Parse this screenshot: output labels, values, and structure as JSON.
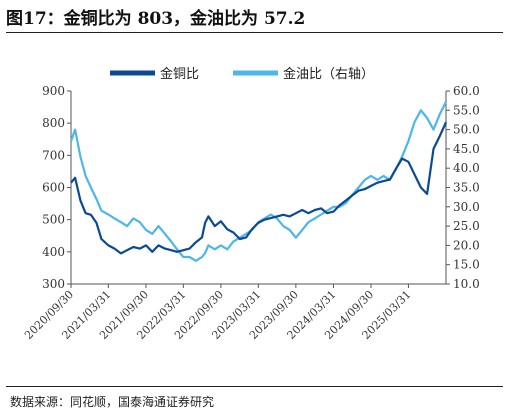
{
  "header": {
    "title": "图17：金铜比为 803，金油比为 57.2"
  },
  "footer": {
    "source": "数据来源：同花顺，国泰海通证券研究"
  },
  "colors": {
    "gold_copper": "#0b4a93",
    "gold_oil": "#4cb7ea"
  },
  "chart_data": {
    "type": "line",
    "title": "图17：金铜比为 803，金油比为 57.2",
    "x_ticks": [
      "2020/09/30",
      "2021/03/31",
      "2021/09/30",
      "2022/03/31",
      "2022/09/30",
      "2023/03/31",
      "2023/09/30",
      "2024/03/31",
      "2024/09/30",
      "2025/03/31"
    ],
    "x_range": [
      "2020/09/30",
      "2025/09/30"
    ],
    "y_left": {
      "range": [
        300,
        900
      ],
      "ticks": [
        "900",
        "800",
        "700",
        "600",
        "500",
        "400",
        "300"
      ]
    },
    "y_right": {
      "range": [
        10.0,
        60.0
      ],
      "ticks": [
        "60.0",
        "55.0",
        "50.0",
        "45.0",
        "40.0",
        "35.0",
        "30.0",
        "25.0",
        "20.0",
        "15.0",
        "10.0"
      ]
    },
    "legend_position": "top-center",
    "grid": false,
    "series": [
      {
        "name": "金铜比",
        "axis": "left",
        "points": [
          [
            "2020/09/30",
            615
          ],
          [
            "2020/10/20",
            630
          ],
          [
            "2020/11/15",
            560
          ],
          [
            "2020/12/10",
            520
          ],
          [
            "2021/01/05",
            515
          ],
          [
            "2021/02/01",
            490
          ],
          [
            "2021/02/25",
            440
          ],
          [
            "2021/03/31",
            420
          ],
          [
            "2021/04/30",
            410
          ],
          [
            "2021/05/31",
            395
          ],
          [
            "2021/06/30",
            405
          ],
          [
            "2021/07/31",
            415
          ],
          [
            "2021/08/31",
            410
          ],
          [
            "2021/09/30",
            420
          ],
          [
            "2021/10/31",
            400
          ],
          [
            "2021/11/30",
            420
          ],
          [
            "2021/12/31",
            410
          ],
          [
            "2022/01/31",
            405
          ],
          [
            "2022/02/28",
            400
          ],
          [
            "2022/03/31",
            405
          ],
          [
            "2022/04/30",
            410
          ],
          [
            "2022/05/31",
            430
          ],
          [
            "2022/06/30",
            445
          ],
          [
            "2022/07/15",
            490
          ],
          [
            "2022/07/31",
            510
          ],
          [
            "2022/08/31",
            480
          ],
          [
            "2022/09/30",
            495
          ],
          [
            "2022/10/31",
            470
          ],
          [
            "2022/11/30",
            460
          ],
          [
            "2022/12/31",
            440
          ],
          [
            "2023/01/31",
            445
          ],
          [
            "2023/02/28",
            470
          ],
          [
            "2023/03/31",
            490
          ],
          [
            "2023/04/30",
            500
          ],
          [
            "2023/05/31",
            505
          ],
          [
            "2023/06/30",
            510
          ],
          [
            "2023/07/31",
            515
          ],
          [
            "2023/08/31",
            510
          ],
          [
            "2023/09/30",
            520
          ],
          [
            "2023/10/31",
            530
          ],
          [
            "2023/11/30",
            520
          ],
          [
            "2023/12/31",
            530
          ],
          [
            "2024/01/31",
            535
          ],
          [
            "2024/02/29",
            520
          ],
          [
            "2024/03/31",
            525
          ],
          [
            "2024/04/30",
            545
          ],
          [
            "2024/05/31",
            560
          ],
          [
            "2024/06/30",
            575
          ],
          [
            "2024/07/31",
            590
          ],
          [
            "2024/08/31",
            595
          ],
          [
            "2024/09/30",
            605
          ],
          [
            "2024/10/31",
            615
          ],
          [
            "2024/11/30",
            620
          ],
          [
            "2024/12/31",
            625
          ],
          [
            "2025/01/31",
            660
          ],
          [
            "2025/02/28",
            690
          ],
          [
            "2025/03/31",
            680
          ],
          [
            "2025/04/30",
            640
          ],
          [
            "2025/05/31",
            600
          ],
          [
            "2025/06/30",
            580
          ],
          [
            "2025/07/31",
            720
          ],
          [
            "2025/08/31",
            760
          ],
          [
            "2025/09/30",
            803
          ]
        ]
      },
      {
        "name": "金油比（右轴）",
        "axis": "right",
        "points": [
          [
            "2020/09/30",
            47
          ],
          [
            "2020/10/20",
            50
          ],
          [
            "2020/11/15",
            43
          ],
          [
            "2020/12/10",
            38
          ],
          [
            "2021/01/05",
            35
          ],
          [
            "2021/02/01",
            32
          ],
          [
            "2021/02/25",
            29
          ],
          [
            "2021/03/31",
            28
          ],
          [
            "2021/04/30",
            27
          ],
          [
            "2021/05/31",
            26
          ],
          [
            "2021/06/30",
            25
          ],
          [
            "2021/07/31",
            27
          ],
          [
            "2021/08/31",
            26
          ],
          [
            "2021/09/30",
            24
          ],
          [
            "2021/10/31",
            23
          ],
          [
            "2021/11/30",
            25
          ],
          [
            "2021/12/31",
            23
          ],
          [
            "2022/01/31",
            21
          ],
          [
            "2022/02/28",
            19
          ],
          [
            "2022/03/31",
            17
          ],
          [
            "2022/04/30",
            17
          ],
          [
            "2022/05/31",
            16
          ],
          [
            "2022/06/30",
            17
          ],
          [
            "2022/07/15",
            18
          ],
          [
            "2022/07/31",
            20
          ],
          [
            "2022/08/31",
            19
          ],
          [
            "2022/09/30",
            20
          ],
          [
            "2022/10/31",
            19
          ],
          [
            "2022/11/30",
            21
          ],
          [
            "2022/12/31",
            22
          ],
          [
            "2023/01/31",
            23
          ],
          [
            "2023/02/28",
            24
          ],
          [
            "2023/03/31",
            26
          ],
          [
            "2023/04/30",
            27
          ],
          [
            "2023/05/31",
            28
          ],
          [
            "2023/06/30",
            27
          ],
          [
            "2023/07/31",
            25
          ],
          [
            "2023/08/31",
            24
          ],
          [
            "2023/09/30",
            22
          ],
          [
            "2023/10/31",
            24
          ],
          [
            "2023/11/30",
            26
          ],
          [
            "2023/12/31",
            27
          ],
          [
            "2024/01/31",
            28
          ],
          [
            "2024/02/29",
            29
          ],
          [
            "2024/03/31",
            30
          ],
          [
            "2024/04/30",
            30
          ],
          [
            "2024/05/31",
            31
          ],
          [
            "2024/06/30",
            33
          ],
          [
            "2024/07/31",
            35
          ],
          [
            "2024/08/31",
            37
          ],
          [
            "2024/09/30",
            38
          ],
          [
            "2024/10/31",
            37
          ],
          [
            "2024/11/30",
            38
          ],
          [
            "2024/12/31",
            37
          ],
          [
            "2025/01/31",
            40
          ],
          [
            "2025/02/28",
            43
          ],
          [
            "2025/03/31",
            47
          ],
          [
            "2025/04/30",
            52
          ],
          [
            "2025/05/31",
            55
          ],
          [
            "2025/06/30",
            53
          ],
          [
            "2025/07/31",
            50
          ],
          [
            "2025/08/31",
            54
          ],
          [
            "2025/09/30",
            57.2
          ]
        ]
      }
    ]
  }
}
